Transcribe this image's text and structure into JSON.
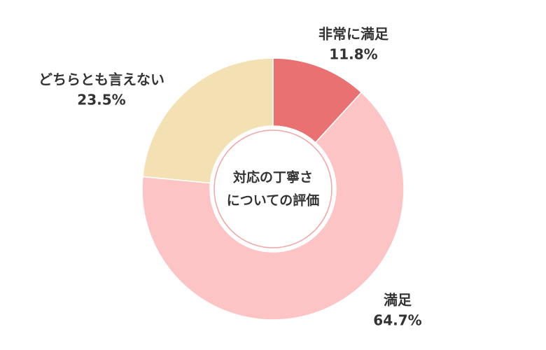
{
  "chart_data": {
    "type": "donut",
    "center_label": [
      "対応の丁寧さ",
      "についての評価"
    ],
    "categories": [
      "非常に満足",
      "満足",
      "どちらとも言えない"
    ],
    "values": [
      11.8,
      64.7,
      23.5
    ],
    "value_labels": [
      "11.8%",
      "64.7%",
      "23.5%"
    ],
    "colors": [
      "#e97172",
      "#fdc4c5",
      "#f4e1b3"
    ]
  }
}
